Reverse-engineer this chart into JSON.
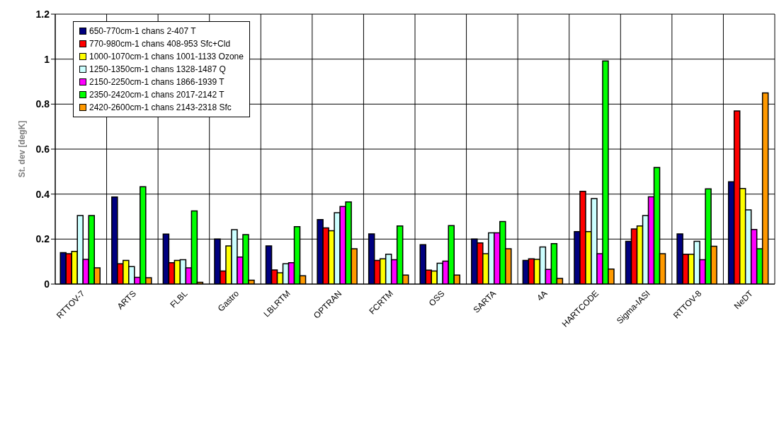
{
  "chart_data": {
    "type": "bar",
    "ylabel": "St. dev [degK]",
    "categories": [
      "RTTOV-7",
      "ARTS",
      "FLBL",
      "Gastro",
      "LBLRTM",
      "OPTRAN",
      "FCRTM",
      "OSS",
      "SARTA",
      "4A",
      "HARTCODE",
      "Sigma-IASI",
      "RTTOV-8",
      "NeDT"
    ],
    "series": [
      {
        "name": "650-770cm-1 chans 2-407 T",
        "color": "#000080",
        "values": [
          0.14,
          0.387,
          0.222,
          0.2,
          0.17,
          0.287,
          0.223,
          0.175,
          0.2,
          0.105,
          0.233,
          0.19,
          0.223,
          0.455
        ]
      },
      {
        "name": "770-980cm-1 chans 408-953 Sfc+Cld",
        "color": "#ff0000",
        "values": [
          0.135,
          0.09,
          0.095,
          0.058,
          0.063,
          0.25,
          0.105,
          0.062,
          0.183,
          0.112,
          0.412,
          0.245,
          0.133,
          0.77
        ]
      },
      {
        "name": "1000-1070cm-1 chans 1001-1133 Ozone",
        "color": "#ffff00",
        "values": [
          0.145,
          0.105,
          0.105,
          0.17,
          0.05,
          0.237,
          0.112,
          0.058,
          0.135,
          0.11,
          0.233,
          0.258,
          0.133,
          0.425
        ]
      },
      {
        "name": "1250-1350cm-1 chans 1328-1487 Q",
        "color": "#ccffff",
        "values": [
          0.305,
          0.078,
          0.108,
          0.242,
          0.09,
          0.317,
          0.133,
          0.093,
          0.228,
          0.165,
          0.38,
          0.305,
          0.19,
          0.33
        ]
      },
      {
        "name": "2150-2250cm-1 chans 1866-1939 T",
        "color": "#ff00ff",
        "values": [
          0.11,
          0.03,
          0.072,
          0.12,
          0.095,
          0.345,
          0.108,
          0.102,
          0.228,
          0.065,
          0.135,
          0.388,
          0.108,
          0.243
        ]
      },
      {
        "name": "2350-2420cm-1 chans 2017-2142 T",
        "color": "#00ff00",
        "values": [
          0.305,
          0.433,
          0.325,
          0.22,
          0.255,
          0.365,
          0.258,
          0.26,
          0.278,
          0.18,
          0.992,
          0.518,
          0.423,
          0.157
        ]
      },
      {
        "name": "2420-2600cm-1 chans 2143-2318 Sfc",
        "color": "#ff9900",
        "values": [
          0.072,
          0.028,
          0.008,
          0.017,
          0.037,
          0.157,
          0.04,
          0.04,
          0.157,
          0.025,
          0.067,
          0.135,
          0.168,
          0.85
        ]
      }
    ],
    "ylim": [
      0,
      1.2
    ],
    "yticks": [
      0,
      0.2,
      0.4,
      0.6,
      0.8,
      1,
      1.2
    ],
    "grid": true,
    "legend": "top left"
  }
}
